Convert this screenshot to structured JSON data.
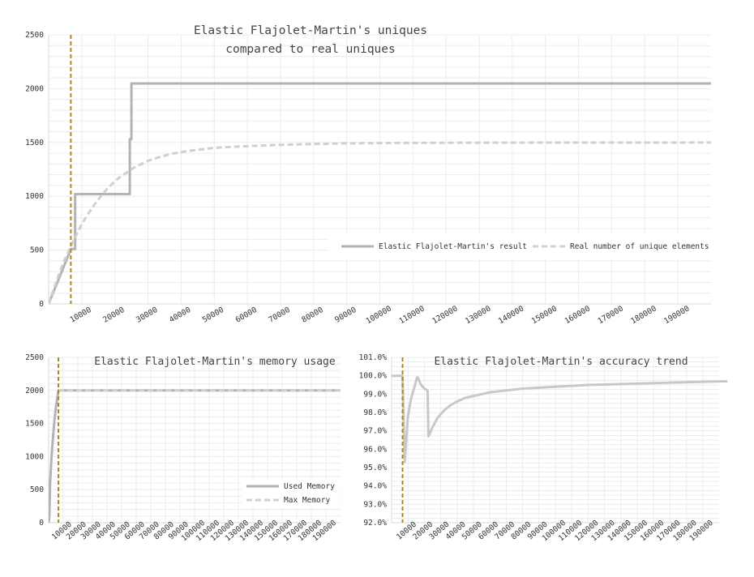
{
  "chart_data": [
    {
      "type": "line",
      "title_lines": [
        "Elastic Flajolet-Martin's uniques",
        "compared to real uniques"
      ],
      "ylim": [
        0,
        2500
      ],
      "yticks": [
        0,
        500,
        1000,
        1500,
        2000,
        2500
      ],
      "xlim": [
        0,
        200000
      ],
      "xticks": [
        "10000",
        "20000",
        "30000",
        "40000",
        "50000",
        "60000",
        "70000",
        "80000",
        "90000",
        "100000",
        "110000",
        "120000",
        "130000",
        "140000",
        "150000",
        "160000",
        "170000",
        "180000",
        "190000"
      ],
      "legend_position": "bottom-right",
      "marker_x": 6700,
      "marker_color": "#b8860b",
      "series": [
        {
          "name": "Elastic Flajolet-Martin's result",
          "color": "#b3b3b3",
          "dash": "solid",
          "step": true,
          "points": [
            [
              0,
              0
            ],
            [
              6700,
              510
            ],
            [
              8000,
              510
            ],
            [
              8000,
              1020
            ],
            [
              24500,
              1020
            ],
            [
              24500,
              1530
            ],
            [
              25000,
              1530
            ],
            [
              25000,
              2048
            ],
            [
              200000,
              2048
            ]
          ]
        },
        {
          "name": "Real number of unique elements",
          "color": "#d0d0d0",
          "dash": "dashed",
          "step": false,
          "points": [
            [
              0,
              0
            ],
            [
              2000,
              180
            ],
            [
              4000,
              350
            ],
            [
              6000,
              490
            ],
            [
              8000,
              620
            ],
            [
              10000,
              740
            ],
            [
              12000,
              840
            ],
            [
              14000,
              930
            ],
            [
              16000,
              1010
            ],
            [
              18000,
              1080
            ],
            [
              20000,
              1140
            ],
            [
              22000,
              1190
            ],
            [
              24000,
              1230
            ],
            [
              26000,
              1270
            ],
            [
              28000,
              1300
            ],
            [
              30000,
              1330
            ],
            [
              34000,
              1370
            ],
            [
              38000,
              1400
            ],
            [
              42000,
              1420
            ],
            [
              46000,
              1435
            ],
            [
              50000,
              1450
            ],
            [
              56000,
              1460
            ],
            [
              62000,
              1468
            ],
            [
              70000,
              1478
            ],
            [
              80000,
              1486
            ],
            [
              90000,
              1492
            ],
            [
              100000,
              1495
            ],
            [
              120000,
              1497
            ],
            [
              150000,
              1499
            ],
            [
              200000,
              1500
            ]
          ]
        }
      ]
    },
    {
      "type": "line",
      "title": "Elastic Flajolet-Martin's memory usage",
      "ylim": [
        0,
        2500
      ],
      "yticks": [
        0,
        500,
        1000,
        1500,
        2000,
        2500
      ],
      "xlim": [
        0,
        200000
      ],
      "xticks": [
        "10000",
        "20000",
        "30000",
        "40000",
        "50000",
        "60000",
        "70000",
        "80000",
        "90000",
        "100000",
        "110000",
        "120000",
        "130000",
        "140000",
        "150000",
        "160000",
        "170000",
        "180000",
        "190000"
      ],
      "legend_position": "bottom-right",
      "marker_x": 6700,
      "marker_color": "#b8860b",
      "series": [
        {
          "name": "Used Memory",
          "color": "#b3b3b3",
          "dash": "solid",
          "step": false,
          "points": [
            [
              0,
              0
            ],
            [
              500,
              100
            ],
            [
              1000,
              600
            ],
            [
              2000,
              1000
            ],
            [
              3000,
              1300
            ],
            [
              4000,
              1550
            ],
            [
              5000,
              1750
            ],
            [
              6000,
              1900
            ],
            [
              6700,
              2000
            ],
            [
              200000,
              2000
            ]
          ]
        },
        {
          "name": "Max Memory",
          "color": "#d0d0d0",
          "dash": "dashed",
          "step": false,
          "points": [
            [
              6700,
              2000
            ],
            [
              200000,
              2000
            ]
          ]
        }
      ]
    },
    {
      "type": "line",
      "title": "Elastic Flajolet-Martin's accuracy trend",
      "ylim": [
        92.0,
        101.0
      ],
      "yticks": [
        "92.0%",
        "93.0%",
        "94.0%",
        "95.0%",
        "96.0%",
        "97.0%",
        "98.0%",
        "99.0%",
        "100.0%",
        "101.0%"
      ],
      "xlim": [
        0,
        200000
      ],
      "xticks": [
        "10000",
        "20000",
        "30000",
        "40000",
        "50000",
        "60000",
        "70000",
        "80000",
        "90000",
        "100000",
        "110000",
        "120000",
        "130000",
        "140000",
        "150000",
        "160000",
        "170000",
        "180000",
        "190000"
      ],
      "marker_x": 6700,
      "marker_color": "#b8860b",
      "series": [
        {
          "name": "",
          "color": "#c8c8c8",
          "dash": "solid",
          "step": false,
          "points": [
            [
              0,
              100
            ],
            [
              6700,
              100
            ],
            [
              7000,
              99.0
            ],
            [
              8000,
              95.3
            ],
            [
              10000,
              97.8
            ],
            [
              12000,
              98.8
            ],
            [
              14000,
              99.4
            ],
            [
              15500,
              99.9
            ],
            [
              16000,
              99.9
            ],
            [
              18000,
              99.5
            ],
            [
              20000,
              99.3
            ],
            [
              22000,
              99.2
            ],
            [
              22500,
              96.7
            ],
            [
              25000,
              97.2
            ],
            [
              28000,
              97.7
            ],
            [
              32000,
              98.1
            ],
            [
              36000,
              98.4
            ],
            [
              40000,
              98.6
            ],
            [
              45000,
              98.8
            ],
            [
              50000,
              98.9
            ],
            [
              60000,
              99.1
            ],
            [
              70000,
              99.2
            ],
            [
              80000,
              99.3
            ],
            [
              90000,
              99.35
            ],
            [
              100000,
              99.4
            ],
            [
              120000,
              99.5
            ],
            [
              140000,
              99.55
            ],
            [
              160000,
              99.6
            ],
            [
              180000,
              99.65
            ],
            [
              205000,
              99.7
            ]
          ]
        }
      ]
    }
  ]
}
